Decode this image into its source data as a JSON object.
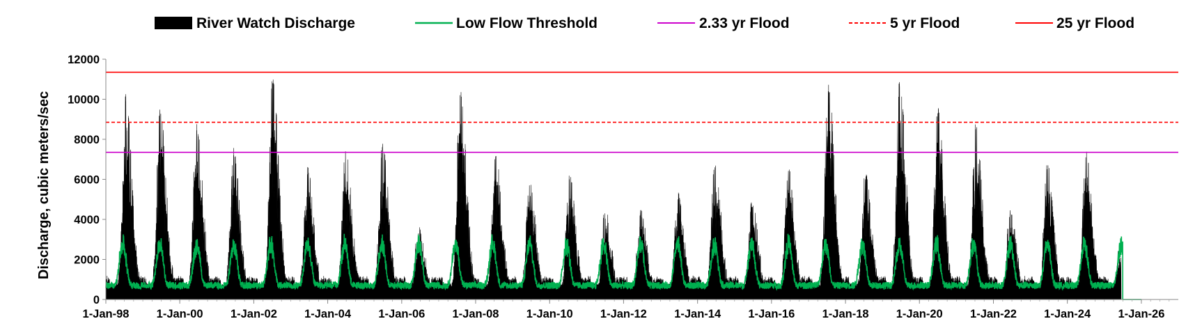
{
  "chart_data": {
    "type": "area",
    "title": "",
    "ylabel": "Discharge, cubic meters/sec",
    "xlabel": "",
    "ylim": [
      0,
      12000
    ],
    "xlim": [
      "1998-01-01",
      "2027-01-01"
    ],
    "grid": false,
    "legend_position": "top",
    "y_ticks": [
      {
        "value": 0,
        "label": "0"
      },
      {
        "value": 2000,
        "label": "2000"
      },
      {
        "value": 4000,
        "label": "4000"
      },
      {
        "value": 6000,
        "label": "6000"
      },
      {
        "value": 8000,
        "label": "8000"
      },
      {
        "value": 10000,
        "label": "10000"
      },
      {
        "value": 12000,
        "label": "12000"
      }
    ],
    "x_ticks": [
      {
        "date": "1998-01-01",
        "label": "1-Jan-98"
      },
      {
        "date": "2000-01-01",
        "label": "1-Jan-00"
      },
      {
        "date": "2002-01-01",
        "label": "1-Jan-02"
      },
      {
        "date": "2004-01-01",
        "label": "1-Jan-04"
      },
      {
        "date": "2006-01-01",
        "label": "1-Jan-06"
      },
      {
        "date": "2008-01-01",
        "label": "1-Jan-08"
      },
      {
        "date": "2010-01-01",
        "label": "1-Jan-10"
      },
      {
        "date": "2012-01-01",
        "label": "1-Jan-12"
      },
      {
        "date": "2014-01-01",
        "label": "1-Jan-14"
      },
      {
        "date": "2016-01-01",
        "label": "1-Jan-16"
      },
      {
        "date": "2018-01-01",
        "label": "1-Jan-18"
      },
      {
        "date": "2020-01-01",
        "label": "1-Jan-20"
      },
      {
        "date": "2022-01-01",
        "label": "1-Jan-22"
      },
      {
        "date": "2024-01-01",
        "label": "1-Jan-24"
      },
      {
        "date": "2026-01-01",
        "label": "1-Jan-26"
      }
    ],
    "series": [
      {
        "name": "River Watch Discharge",
        "kind": "area",
        "color": "#000000",
        "data_end": "2025-06-15",
        "annual_peaks": [
          {
            "date": "1998-07-15",
            "value": 9900
          },
          {
            "date": "1999-06-20",
            "value": 9150
          },
          {
            "date": "2000-06-15",
            "value": 8450
          },
          {
            "date": "2001-06-15",
            "value": 7200
          },
          {
            "date": "2002-07-05",
            "value": 10800
          },
          {
            "date": "2003-06-15",
            "value": 6250
          },
          {
            "date": "2004-06-25",
            "value": 7400
          },
          {
            "date": "2005-06-25",
            "value": 7500
          },
          {
            "date": "2006-06-15",
            "value": 3300
          },
          {
            "date": "2007-08-01",
            "value": 10200
          },
          {
            "date": "2008-07-15",
            "value": 7150
          },
          {
            "date": "2009-06-15",
            "value": 5700
          },
          {
            "date": "2010-07-15",
            "value": 6000
          },
          {
            "date": "2011-07-01",
            "value": 4300
          },
          {
            "date": "2012-06-15",
            "value": 4200
          },
          {
            "date": "2013-06-20",
            "value": 5000
          },
          {
            "date": "2014-06-20",
            "value": 6600
          },
          {
            "date": "2015-06-20",
            "value": 4600
          },
          {
            "date": "2016-06-15",
            "value": 6200
          },
          {
            "date": "2017-07-15",
            "value": 10400
          },
          {
            "date": "2018-07-15",
            "value": 6000
          },
          {
            "date": "2019-06-20",
            "value": 10600
          },
          {
            "date": "2020-07-01",
            "value": 9300
          },
          {
            "date": "2021-07-10",
            "value": 8500
          },
          {
            "date": "2022-06-15",
            "value": 4200
          },
          {
            "date": "2023-06-15",
            "value": 6500
          },
          {
            "date": "2024-07-01",
            "value": 7100
          },
          {
            "date": "2025-06-01",
            "value": 2300
          }
        ]
      },
      {
        "name": "Low Flow Threshold",
        "kind": "line",
        "color": "#00b050",
        "typical_annual_min": 700,
        "typical_annual_max": 3200,
        "data_end": "2025-07-01",
        "tail_value": 0,
        "tail_end": "2026-01-01"
      },
      {
        "name": "2.33 yr Flood",
        "kind": "hline",
        "color": "#cc00cc",
        "dash": false,
        "value": 7350
      },
      {
        "name": "5 yr Flood",
        "kind": "hline",
        "color": "#ff0000",
        "dash": true,
        "value": 8850
      },
      {
        "name": "25 yr Flood",
        "kind": "hline",
        "color": "#ff0000",
        "dash": false,
        "value": 11350
      }
    ]
  }
}
